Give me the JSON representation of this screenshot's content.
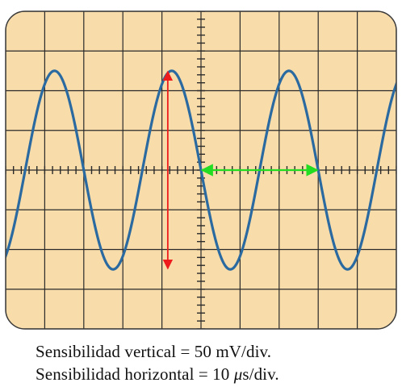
{
  "screen": {
    "background_color": "#f8dcaa",
    "grid_color": "#2a2a2a",
    "divisions_x": 10,
    "divisions_y": 8,
    "minor_ticks_per_division": 5
  },
  "waveform": {
    "type": "sine",
    "color": "#2a6aa0",
    "amplitude_div": 2.5,
    "period_div": 3.0,
    "phase_zero_crossing_div": 5.0
  },
  "markers": {
    "peak_to_peak": {
      "color": "#ee1c1c",
      "x_div": 4.15,
      "from_div": 2.5,
      "to_div": -2.5
    },
    "period": {
      "color": "#22dd22",
      "y_div": 0,
      "from_div": 5.0,
      "to_div": 8.0
    }
  },
  "caption": {
    "vertical_prefix": "Sensibilidad vertical = 50 mV/div.",
    "horizontal_prefix": "Sensibilidad horizontal = 10 ",
    "horizontal_mu": "μ",
    "horizontal_suffix": "s/div."
  }
}
